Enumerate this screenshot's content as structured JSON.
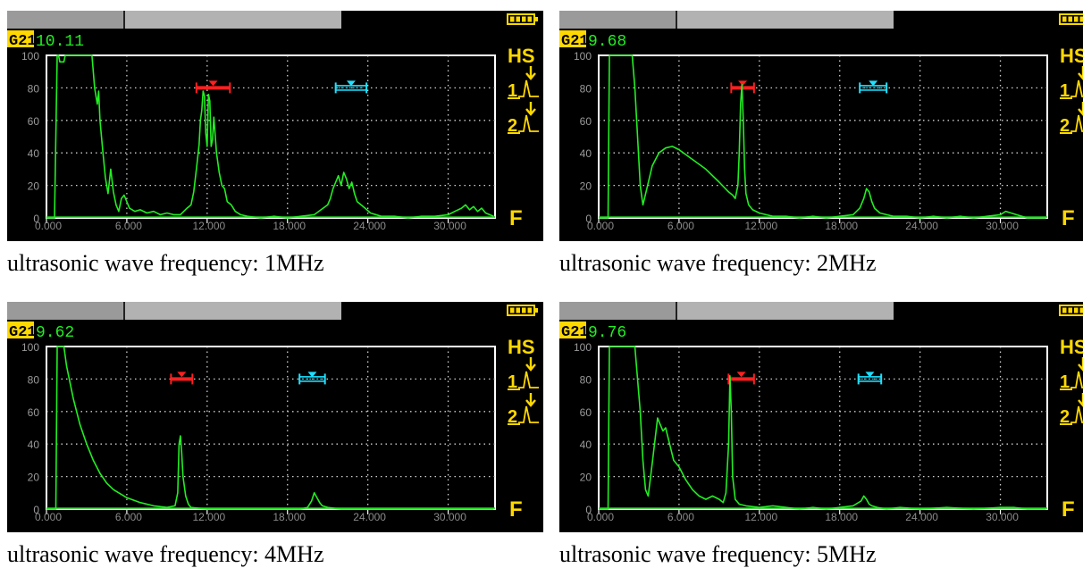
{
  "panels": [
    {
      "caption": "ultrasonic wave frequency: 1MHz",
      "gate_label": "G21",
      "reading": "10.11",
      "hs_label": "HS",
      "gate1_label": "1",
      "gate2_label": "2",
      "f_label": "F",
      "chart_data": {
        "type": "line",
        "xlim": [
          0,
          33.5
        ],
        "ylim": [
          0,
          100
        ],
        "x_ticks": [
          "0.000",
          "6.000",
          "12.000",
          "18.000",
          "24.000",
          "30.000"
        ],
        "y_ticks": [
          "0",
          "20",
          "40",
          "60",
          "80",
          "100"
        ],
        "grid": true,
        "gates": [
          {
            "color": "#ff2020",
            "x_start": 11.2,
            "x_end": 13.7,
            "level": 80
          },
          {
            "color": "#20e0ff",
            "x_start": 21.6,
            "x_end": 23.9,
            "level": 80
          }
        ],
        "x": [
          0.0,
          0.6,
          0.8,
          0.9,
          1.0,
          1.3,
          1.4,
          1.6,
          2.0,
          2.5,
          3.0,
          3.4,
          3.6,
          3.7,
          3.8,
          3.9,
          4.0,
          4.2,
          4.4,
          4.6,
          4.8,
          5.0,
          5.2,
          5.4,
          5.6,
          5.8,
          6.2,
          6.6,
          7.0,
          7.5,
          8.0,
          8.5,
          9.0,
          9.5,
          10.0,
          10.5,
          10.8,
          11.0,
          11.2,
          11.4,
          11.5,
          11.6,
          11.7,
          11.8,
          11.9,
          12.0,
          12.1,
          12.2,
          12.3,
          12.4,
          12.5,
          12.7,
          12.9,
          13.1,
          13.3,
          13.5,
          13.8,
          14.1,
          14.5,
          15.0,
          16.0,
          17.0,
          18.0,
          19.0,
          20.0,
          20.5,
          21.0,
          21.2,
          21.4,
          21.6,
          21.8,
          22.0,
          22.2,
          22.4,
          22.6,
          22.8,
          23.0,
          23.2,
          23.5,
          23.8,
          24.2,
          25.0,
          26.0,
          27.0,
          28.0,
          29.0,
          30.0,
          30.5,
          31.0,
          31.3,
          31.6,
          31.9,
          32.2,
          32.5,
          32.8,
          33.1,
          33.4
        ],
        "values": [
          0,
          0,
          100,
          100,
          96,
          96,
          100,
          100,
          100,
          100,
          100,
          100,
          80,
          75,
          70,
          78,
          60,
          42,
          25,
          15,
          30,
          16,
          8,
          4,
          12,
          14,
          6,
          4,
          5,
          3,
          4,
          2,
          3,
          2,
          2,
          6,
          8,
          16,
          30,
          45,
          60,
          66,
          78,
          75,
          52,
          44,
          76,
          72,
          44,
          48,
          62,
          40,
          28,
          20,
          18,
          10,
          8,
          4,
          2,
          1,
          0,
          1,
          0,
          1,
          2,
          5,
          8,
          12,
          18,
          22,
          26,
          20,
          28,
          24,
          18,
          22,
          15,
          10,
          8,
          6,
          3,
          1,
          1,
          0,
          1,
          1,
          2,
          4,
          6,
          8,
          5,
          7,
          4,
          6,
          3,
          2,
          1
        ]
      }
    },
    {
      "caption": "ultrasonic wave frequency: 2MHz",
      "gate_label": "G21",
      "reading": "9.68",
      "hs_label": "HS",
      "gate1_label": "1",
      "gate2_label": "2",
      "f_label": "F",
      "chart_data": {
        "type": "line",
        "xlim": [
          0,
          33.5
        ],
        "ylim": [
          0,
          100
        ],
        "x_ticks": [
          "0.000",
          "6.000",
          "12.000",
          "18.000",
          "24.000",
          "30.000"
        ],
        "y_ticks": [
          "0",
          "20",
          "40",
          "60",
          "80",
          "100"
        ],
        "grid": true,
        "gates": [
          {
            "color": "#ff2020",
            "x_start": 9.9,
            "x_end": 11.6,
            "level": 80
          },
          {
            "color": "#20e0ff",
            "x_start": 19.5,
            "x_end": 21.5,
            "level": 80
          }
        ],
        "x": [
          0.0,
          0.7,
          0.8,
          2.5,
          2.7,
          2.9,
          3.1,
          3.3,
          3.6,
          4.0,
          4.5,
          5.0,
          5.5,
          6.0,
          7.0,
          8.0,
          9.0,
          9.7,
          10.0,
          10.2,
          10.4,
          10.5,
          10.6,
          10.7,
          10.8,
          10.9,
          11.0,
          11.2,
          11.5,
          12.0,
          12.5,
          13.0,
          14.0,
          15.0,
          16.0,
          17.0,
          18.0,
          19.0,
          19.5,
          19.8,
          20.0,
          20.2,
          20.4,
          20.6,
          21.0,
          21.5,
          22.0,
          23.0,
          24.0,
          25.0,
          26.0,
          27.0,
          28.0,
          29.0,
          30.0,
          30.4,
          30.8,
          31.2,
          31.6,
          32.0,
          33.4
        ],
        "values": [
          0,
          0,
          100,
          100,
          80,
          50,
          20,
          8,
          18,
          32,
          40,
          43,
          44,
          42,
          36,
          30,
          22,
          16,
          14,
          12,
          20,
          40,
          70,
          82,
          60,
          30,
          15,
          8,
          5,
          3,
          2,
          1,
          1,
          0,
          1,
          0,
          1,
          2,
          6,
          12,
          18,
          16,
          10,
          6,
          3,
          2,
          1,
          1,
          0,
          1,
          0,
          1,
          0,
          1,
          2,
          4,
          3,
          2,
          1,
          0,
          0
        ]
      }
    },
    {
      "caption": "ultrasonic wave frequency: 4MHz",
      "gate_label": "G21",
      "reading": "9.62",
      "hs_label": "HS",
      "gate1_label": "1",
      "gate2_label": "2",
      "f_label": "F",
      "chart_data": {
        "type": "line",
        "xlim": [
          0,
          33.5
        ],
        "ylim": [
          0,
          100
        ],
        "x_ticks": [
          "0.000",
          "6.000",
          "12.000",
          "18.000",
          "24.000",
          "30.000"
        ],
        "y_ticks": [
          "0",
          "20",
          "40",
          "60",
          "80",
          "100"
        ],
        "grid": true,
        "gates": [
          {
            "color": "#ff2020",
            "x_start": 9.3,
            "x_end": 10.9,
            "level": 80
          },
          {
            "color": "#20e0ff",
            "x_start": 18.9,
            "x_end": 20.8,
            "level": 80
          }
        ],
        "x": [
          0.0,
          0.7,
          0.8,
          1.3,
          1.5,
          2.0,
          2.5,
          3.0,
          3.5,
          4.0,
          4.5,
          5.0,
          6.0,
          7.0,
          8.0,
          9.0,
          9.6,
          9.8,
          9.9,
          10.0,
          10.1,
          10.2,
          10.4,
          10.6,
          10.8,
          12.0,
          14.0,
          16.0,
          18.0,
          19.0,
          19.5,
          19.8,
          20.0,
          20.2,
          20.4,
          20.6,
          21.0,
          22.0,
          24.0,
          27.0,
          30.0,
          33.4
        ],
        "values": [
          0,
          0,
          100,
          100,
          88,
          68,
          52,
          40,
          30,
          22,
          16,
          12,
          7,
          4,
          2,
          1,
          2,
          10,
          40,
          45,
          35,
          20,
          8,
          3,
          1,
          0,
          0,
          0,
          0,
          0,
          1,
          5,
          10,
          7,
          4,
          2,
          1,
          0,
          0,
          0,
          0,
          0
        ]
      }
    },
    {
      "caption": "ultrasonic wave frequency: 5MHz",
      "gate_label": "G21",
      "reading": "9.76",
      "hs_label": "HS",
      "gate1_label": "1",
      "gate2_label": "2",
      "f_label": "F",
      "chart_data": {
        "type": "line",
        "xlim": [
          0,
          33.5
        ],
        "ylim": [
          0,
          100
        ],
        "x_ticks": [
          "0.000",
          "6.000",
          "12.000",
          "18.000",
          "24.000",
          "30.000"
        ],
        "y_ticks": [
          "0",
          "20",
          "40",
          "60",
          "80",
          "100"
        ],
        "grid": true,
        "gates": [
          {
            "color": "#ff2020",
            "x_start": 9.7,
            "x_end": 11.6,
            "level": 80
          },
          {
            "color": "#20e0ff",
            "x_start": 19.4,
            "x_end": 21.1,
            "level": 80
          }
        ],
        "x": [
          0.0,
          0.7,
          0.8,
          1.2,
          2.7,
          2.9,
          3.1,
          3.3,
          3.5,
          3.7,
          4.0,
          4.2,
          4.4,
          4.6,
          4.8,
          5.0,
          5.3,
          5.6,
          6.0,
          6.5,
          7.0,
          7.5,
          8.0,
          8.5,
          9.0,
          9.3,
          9.5,
          9.7,
          9.8,
          9.9,
          10.0,
          10.2,
          10.5,
          11.0,
          12.0,
          13.0,
          14.0,
          15.0,
          16.0,
          17.0,
          18.0,
          19.0,
          19.6,
          19.8,
          20.0,
          20.2,
          20.4,
          20.8,
          21.5,
          22.5,
          24.0,
          26.0,
          28.0,
          30.0,
          31.0,
          32.0,
          33.4
        ],
        "values": [
          0,
          0,
          100,
          100,
          100,
          80,
          60,
          30,
          12,
          8,
          28,
          42,
          56,
          52,
          48,
          50,
          40,
          30,
          26,
          18,
          12,
          8,
          6,
          8,
          6,
          4,
          10,
          40,
          82,
          60,
          20,
          6,
          3,
          2,
          1,
          2,
          1,
          0,
          1,
          0,
          1,
          2,
          5,
          8,
          6,
          3,
          2,
          1,
          0,
          1,
          0,
          1,
          0,
          1,
          1,
          0,
          0
        ]
      }
    }
  ]
}
